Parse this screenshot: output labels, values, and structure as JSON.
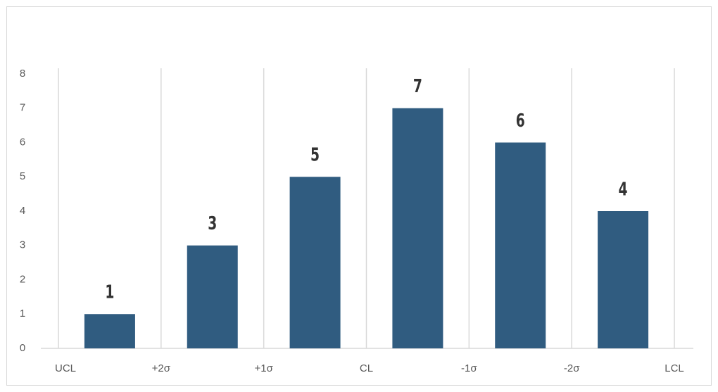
{
  "chart_data": {
    "type": "bar",
    "categories": [
      null,
      null,
      null,
      null,
      null,
      null
    ],
    "bin_labels": [
      "UCL",
      "+2σ",
      "+1σ",
      "CL",
      "-1σ",
      "-2σ",
      "LCL"
    ],
    "values": [
      1,
      3,
      5,
      7,
      6,
      4
    ],
    "color": "#305c80",
    "ylim": [
      0,
      8
    ],
    "yticks": [
      0,
      1,
      2,
      3,
      4,
      5,
      6,
      7,
      8
    ],
    "grid": true
  }
}
